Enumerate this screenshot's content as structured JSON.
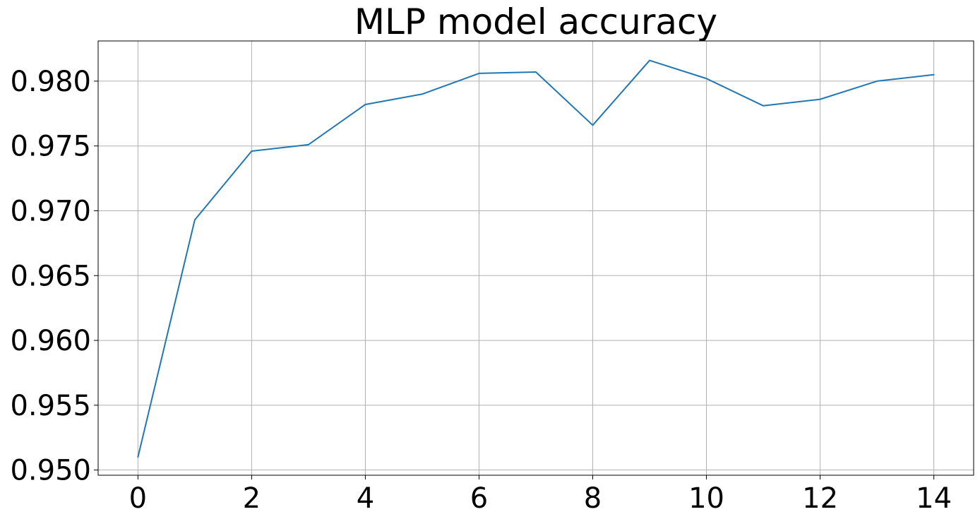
{
  "chart_data": {
    "type": "line",
    "title": "MLP model accuracy",
    "xlabel": "",
    "ylabel": "",
    "grid": true,
    "x": [
      0,
      1,
      2,
      3,
      4,
      5,
      6,
      7,
      8,
      9,
      10,
      11,
      12,
      13,
      14
    ],
    "series": [
      {
        "name": "accuracy",
        "color": "#1f77b4",
        "values": [
          0.951,
          0.9693,
          0.9746,
          0.9751,
          0.9782,
          0.979,
          0.9806,
          0.9807,
          0.9766,
          0.9816,
          0.9802,
          0.9781,
          0.9786,
          0.98,
          0.9805
        ]
      }
    ],
    "xlim": [
      -0.7,
      14.7
    ],
    "ylim": [
      0.9496,
      0.9831
    ],
    "xticks": [
      0,
      2,
      4,
      6,
      8,
      10,
      12,
      14
    ],
    "xtick_labels": [
      "0",
      "2",
      "4",
      "6",
      "8",
      "10",
      "12",
      "14"
    ],
    "yticks": [
      0.95,
      0.955,
      0.96,
      0.965,
      0.97,
      0.975,
      0.98
    ],
    "ytick_labels": [
      "0.950",
      "0.955",
      "0.960",
      "0.965",
      "0.970",
      "0.975",
      "0.980"
    ]
  }
}
